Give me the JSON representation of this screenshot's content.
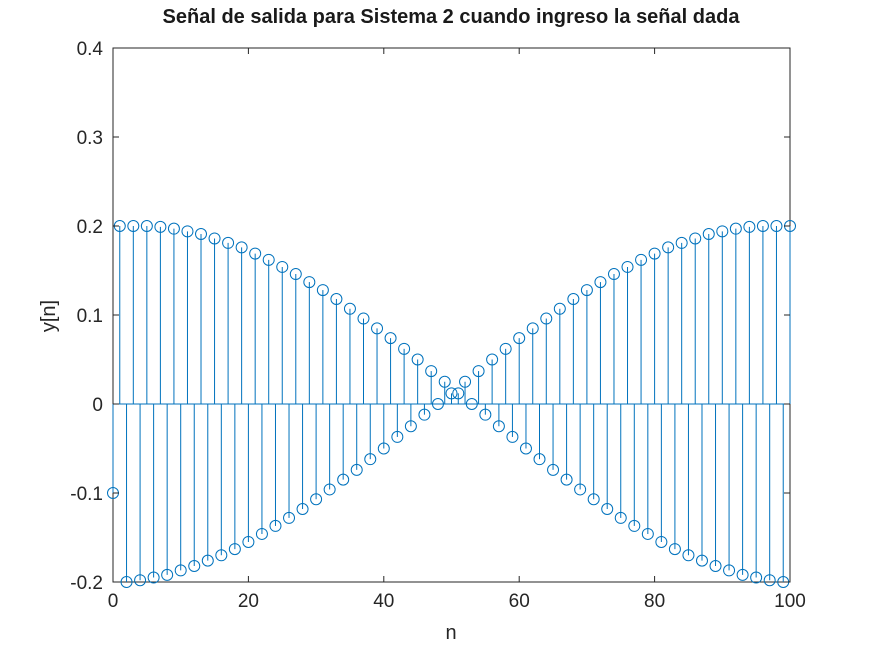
{
  "chart_data": {
    "type": "stem",
    "title": "Señal de salida para Sistema 2 cuando ingreso la señal dada",
    "xlabel": "n",
    "ylabel": "y[n]",
    "xlim": [
      0,
      100
    ],
    "ylim": [
      -0.2,
      0.4
    ],
    "xticks": [
      "0",
      "20",
      "40",
      "60",
      "80",
      "100"
    ],
    "yticks": [
      "-0.2",
      "-0.1",
      "0",
      "0.1",
      "0.2",
      "0.3",
      "0.4"
    ],
    "grid": false,
    "marker": "circle",
    "series_color": "#0072BD",
    "x": [
      0,
      1,
      2,
      3,
      4,
      5,
      6,
      7,
      8,
      9,
      10,
      11,
      12,
      13,
      14,
      15,
      16,
      17,
      18,
      19,
      20,
      21,
      22,
      23,
      24,
      25,
      26,
      27,
      28,
      29,
      30,
      31,
      32,
      33,
      34,
      35,
      36,
      37,
      38,
      39,
      40,
      41,
      42,
      43,
      44,
      45,
      46,
      47,
      48,
      49,
      50,
      51,
      52,
      53,
      54,
      55,
      56,
      57,
      58,
      59,
      60,
      61,
      62,
      63,
      64,
      65,
      66,
      67,
      68,
      69,
      70,
      71,
      72,
      73,
      74,
      75,
      76,
      77,
      78,
      79,
      80,
      81,
      82,
      83,
      84,
      85,
      86,
      87,
      88,
      89,
      90,
      91,
      92,
      93,
      94,
      95,
      96,
      97,
      98,
      99,
      100
    ],
    "y": [
      -0.1,
      0.2,
      -0.2,
      0.2,
      -0.198,
      0.2,
      -0.195,
      0.199,
      -0.192,
      0.197,
      -0.187,
      0.194,
      -0.182,
      0.191,
      -0.176,
      0.186,
      -0.17,
      0.181,
      -0.163,
      0.176,
      -0.155,
      0.169,
      -0.146,
      0.162,
      -0.137,
      0.154,
      -0.128,
      0.146,
      -0.118,
      0.137,
      -0.107,
      0.128,
      -0.096,
      0.118,
      -0.085,
      0.107,
      -0.074,
      0.096,
      -0.062,
      0.085,
      -0.05,
      0.074,
      -0.037,
      0.062,
      -0.025,
      0.05,
      -0.012,
      0.037,
      0.0,
      0.025,
      0.012,
      0.012,
      0.025,
      0.0,
      0.037,
      -0.012,
      0.05,
      -0.025,
      0.062,
      -0.037,
      0.074,
      -0.05,
      0.085,
      -0.062,
      0.096,
      -0.074,
      0.107,
      -0.085,
      0.118,
      -0.096,
      0.128,
      -0.107,
      0.137,
      -0.118,
      0.146,
      -0.128,
      0.154,
      -0.137,
      0.162,
      -0.146,
      0.169,
      -0.155,
      0.176,
      -0.163,
      0.181,
      -0.17,
      0.186,
      -0.176,
      0.191,
      -0.182,
      0.194,
      -0.187,
      0.197,
      -0.192,
      0.199,
      -0.195,
      0.2,
      -0.198,
      0.2,
      -0.2,
      0.2
    ]
  }
}
